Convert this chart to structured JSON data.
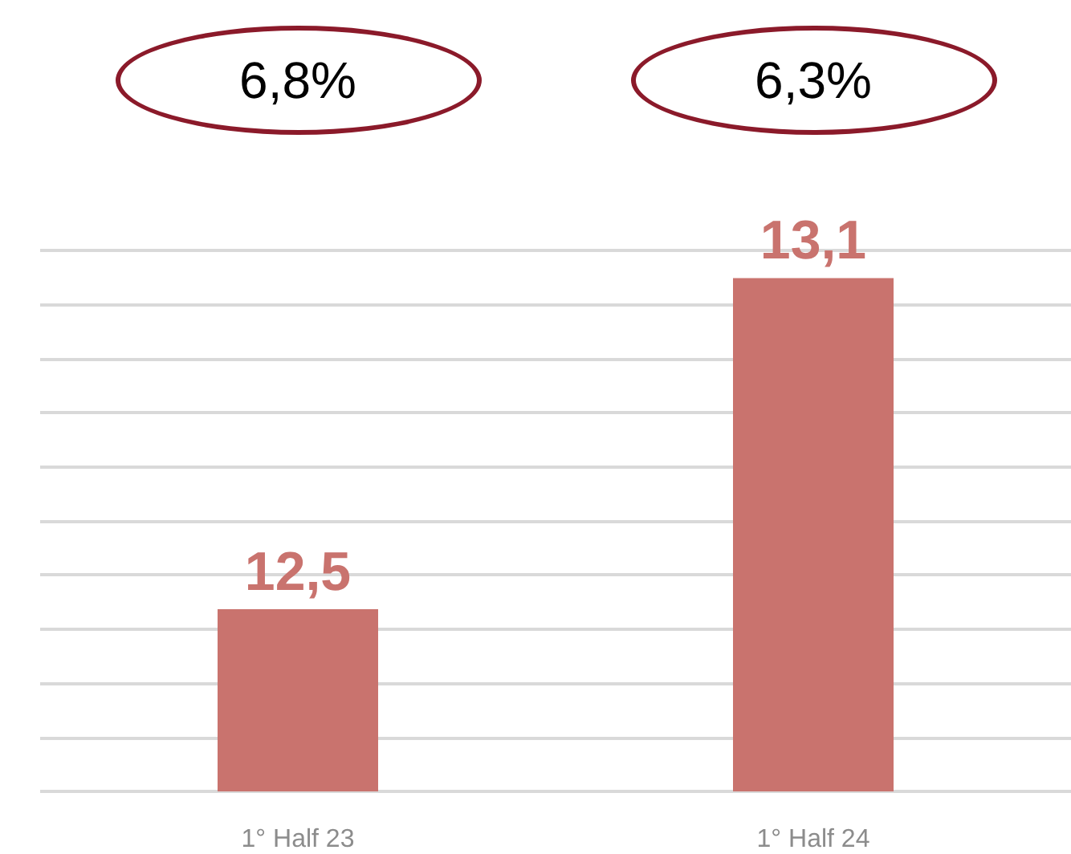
{
  "chart_data": {
    "type": "bar",
    "categories": [
      "1° Half 23",
      "1° Half 24"
    ],
    "values": [
      12.5,
      13.1
    ],
    "value_labels": [
      "12,5",
      "13,1"
    ],
    "color": "#c9736e",
    "ylim": [
      12.17,
      13.15
    ],
    "yticks": [
      {
        "value": 12.17,
        "label": null
      },
      {
        "value": 12.268,
        "label": null
      },
      {
        "value": 12.366,
        "label": null
      },
      {
        "value": 12.464,
        "label": null
      },
      {
        "value": 12.562,
        "label": null
      },
      {
        "value": 12.66,
        "label": null
      },
      {
        "value": 12.758,
        "label": null
      },
      {
        "value": 12.856,
        "label": null
      },
      {
        "value": 12.954,
        "label": null
      },
      {
        "value": 13.052,
        "label": null
      },
      {
        "value": 13.15,
        "label": null
      }
    ],
    "grid": "y",
    "tick_labels": "x",
    "annotations": [
      "6,8%",
      "6,3%"
    ]
  }
}
